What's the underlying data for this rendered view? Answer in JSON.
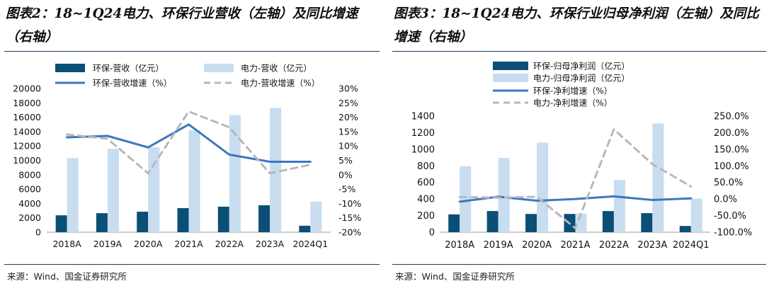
{
  "colors": {
    "bar_a": "#0b4f77",
    "bar_b": "#c8ddef",
    "line_a": "#3b78c1",
    "line_b": "#b8b8b8",
    "axis": "#999999"
  },
  "chart_data": [
    {
      "type": "bar",
      "figure_label": "图表2：18~1Q24电力、环保行业营收（左轴）及同比增速（右轴）",
      "source": "来源：Wind、国金证券研究所",
      "categories": [
        "2018A",
        "2019A",
        "2020A",
        "2021A",
        "2022A",
        "2023A",
        "2024Q1"
      ],
      "left_axis": {
        "ylim": [
          0,
          20000
        ],
        "ticks": [
          "0",
          "2000",
          "4000",
          "6000",
          "8000",
          "10000",
          "12000",
          "14000",
          "16000",
          "18000",
          "20000"
        ]
      },
      "right_axis": {
        "ylim": [
          -20,
          30
        ],
        "ticks": [
          "-20%",
          "-15%",
          "-10%",
          "-5%",
          "0%",
          "5%",
          "10%",
          "15%",
          "20%",
          "25%",
          "30%"
        ]
      },
      "series": [
        {
          "name": "环保-营收（亿元）",
          "kind": "bar",
          "axis": "left",
          "values": [
            2350,
            2650,
            2850,
            3350,
            3550,
            3750,
            900
          ]
        },
        {
          "name": "电力-营收（亿元）",
          "kind": "bar",
          "axis": "left",
          "values": [
            10300,
            11600,
            11800,
            14200,
            16300,
            17300,
            4250
          ]
        },
        {
          "name": "环保-营收增速（%）",
          "kind": "line",
          "axis": "right",
          "values": [
            13.0,
            13.5,
            9.5,
            17.5,
            7.0,
            4.5,
            4.5
          ]
        },
        {
          "name": "电力-营收增速（%）",
          "kind": "line",
          "dashed": true,
          "axis": "right",
          "values": [
            14.0,
            12.5,
            0.5,
            22.0,
            16.5,
            0.5,
            3.5
          ]
        }
      ]
    },
    {
      "type": "bar",
      "figure_label": "图表3：18~1Q24电力、环保行业归母净利润（左轴）及同比增速（右轴）",
      "source": "来源：Wind、国金证券研究所",
      "categories": [
        "2018A",
        "2019A",
        "2020A",
        "2021A",
        "2022A",
        "2023A",
        "2024Q1"
      ],
      "left_axis": {
        "ylim": [
          0,
          1400
        ],
        "ticks": [
          "0",
          "200",
          "400",
          "600",
          "800",
          "1000",
          "1200",
          "1400"
        ]
      },
      "right_axis": {
        "ylim": [
          -100,
          250
        ],
        "ticks": [
          "-100.0%",
          "-50.0%",
          "0.0%",
          "50.0%",
          "100.0%",
          "150.0%",
          "200.0%",
          "250.0%"
        ]
      },
      "series": [
        {
          "name": "环保-归母净利润（亿元）",
          "kind": "bar",
          "axis": "left",
          "values": [
            215,
            255,
            220,
            220,
            255,
            230,
            75
          ]
        },
        {
          "name": "电力-归母净利润（亿元）",
          "kind": "bar",
          "axis": "left",
          "values": [
            795,
            895,
            1080,
            225,
            630,
            1310,
            405
          ]
        },
        {
          "name": "环保-净利增速（%）",
          "kind": "line",
          "axis": "right",
          "values": [
            -8,
            7,
            -5,
            0,
            8,
            -3,
            2
          ]
        },
        {
          "name": "电力-净利增速（%）",
          "kind": "line",
          "dashed": true,
          "axis": "right",
          "values": [
            6,
            4,
            7,
            -88,
            210,
            105,
            38
          ]
        }
      ]
    }
  ]
}
